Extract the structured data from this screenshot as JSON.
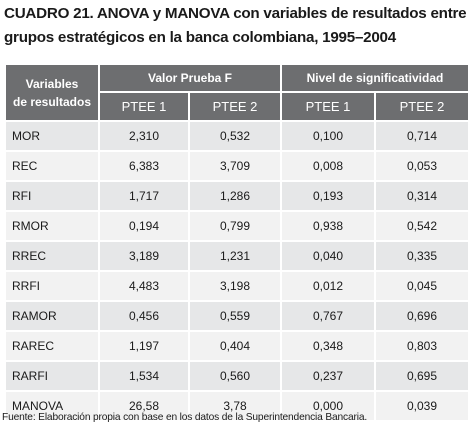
{
  "title": {
    "line1": "CUADRO 21. ANOVA y MANOVA con variables de resultados entre",
    "line2": "grupos estratégicos en la banca colombiana, 1995–2004"
  },
  "table": {
    "header": {
      "variables_line1": "Variables",
      "variables_line2": "de resultados",
      "group1": "Valor Prueba F",
      "group2": "Nivel de significatividad",
      "sub": [
        "PTEE 1",
        "PTEE 2",
        "PTEE 1",
        "PTEE 2"
      ]
    },
    "rows": [
      {
        "name": "MOR",
        "f1": "2,310",
        "f2": "0,532",
        "s1": "0,100",
        "s2": "0,714"
      },
      {
        "name": "REC",
        "f1": "6,383",
        "f2": "3,709",
        "s1": "0,008",
        "s2": "0,053"
      },
      {
        "name": "RFI",
        "f1": "1,717",
        "f2": "1,286",
        "s1": "0,193",
        "s2": "0,314"
      },
      {
        "name": "RMOR",
        "f1": "0,194",
        "f2": "0,799",
        "s1": "0,938",
        "s2": "0,542"
      },
      {
        "name": "RREC",
        "f1": "3,189",
        "f2": "1,231",
        "s1": "0,040",
        "s2": "0,335"
      },
      {
        "name": "RRFI",
        "f1": "4,483",
        "f2": "3,198",
        "s1": "0,012",
        "s2": "0,045"
      },
      {
        "name": "RAMOR",
        "f1": "0,456",
        "f2": "0,559",
        "s1": "0,767",
        "s2": "0,696"
      },
      {
        "name": "RAREC",
        "f1": "1,197",
        "f2": "0,404",
        "s1": "0,348",
        "s2": "0,803"
      },
      {
        "name": "RARFI",
        "f1": "1,534",
        "f2": "0,560",
        "s1": "0,237",
        "s2": "0,695"
      },
      {
        "name": "MANOVA",
        "f1": "26,58",
        "f2": "3,78",
        "s1": "0,000",
        "s2": "0,039"
      }
    ]
  },
  "footer": "Fuente: Elaboración propia con base en los datos de la Superintendencia Bancaria.",
  "colors": {
    "header_bg": "#6d6e70",
    "row_odd": "#e6e7e8",
    "row_even": "#f2f2f2"
  }
}
